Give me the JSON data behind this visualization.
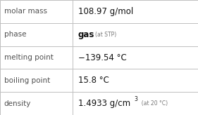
{
  "rows": [
    {
      "label": "molar mass",
      "main": "108.97 g/mol",
      "main_bold": false,
      "sup": "",
      "small": ""
    },
    {
      "label": "phase",
      "main": "gas",
      "main_bold": true,
      "sup": "",
      "small": " (at STP)"
    },
    {
      "label": "melting point",
      "main": "−139.54 °C",
      "main_bold": false,
      "sup": "",
      "small": ""
    },
    {
      "label": "boiling point",
      "main": "15.8 °C",
      "main_bold": false,
      "sup": "",
      "small": ""
    },
    {
      "label": "density",
      "main": "1.4933 g/cm",
      "main_bold": false,
      "sup": "3",
      "small": "  (at 20 °C)"
    }
  ],
  "col_split": 0.365,
  "bg": "#ffffff",
  "border": "#c0c0c0",
  "label_color": "#505050",
  "value_color": "#111111",
  "small_color": "#777777",
  "fs_label": 7.5,
  "fs_value": 8.5,
  "fs_small": 5.5,
  "fs_sup": 5.5
}
